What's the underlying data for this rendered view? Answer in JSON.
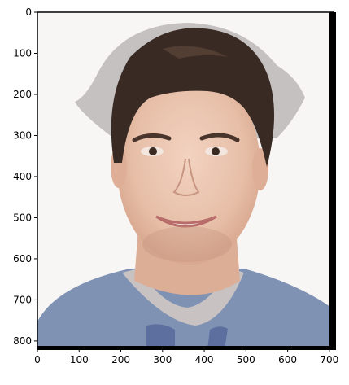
{
  "figure": {
    "kind": "image-plot",
    "subject": "portrait-of-young-man-smiling",
    "x_ticks": [
      "0",
      "100",
      "200",
      "300",
      "400",
      "500",
      "600",
      "700"
    ],
    "y_ticks": [
      "0",
      "100",
      "200",
      "300",
      "400",
      "500",
      "600",
      "700",
      "800"
    ],
    "x_range": [
      0,
      710
    ],
    "y_range": [
      0,
      820
    ],
    "colors": {
      "background": "#f8f6f5",
      "skin": "#e9c2ad",
      "hair": "#3a2a24",
      "shirt": "#7f92b4",
      "collar": "#c8c2c2",
      "frame": "#000000"
    }
  }
}
